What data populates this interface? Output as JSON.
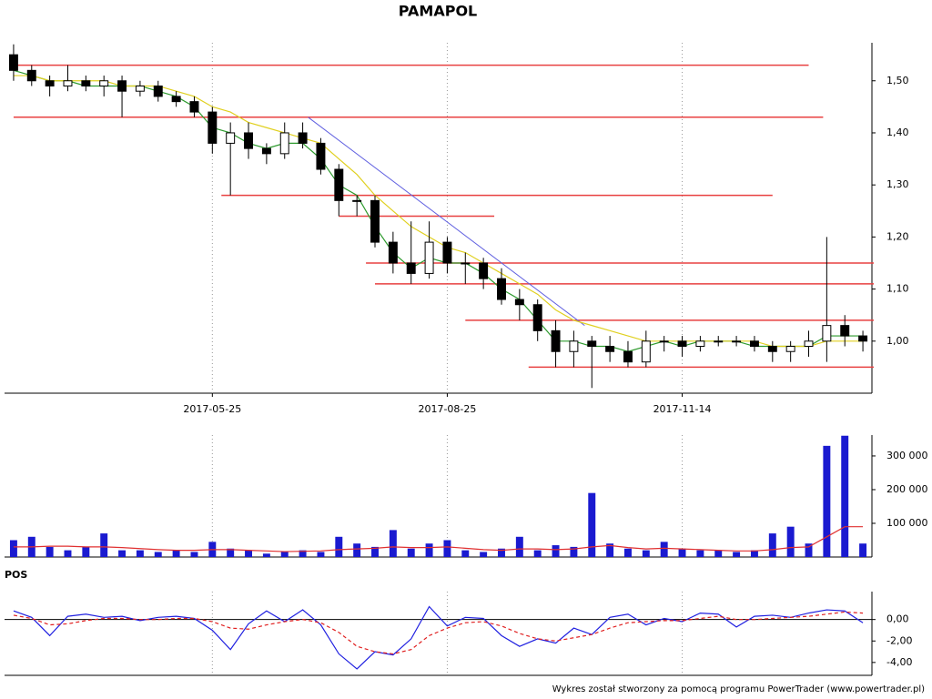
{
  "chart_data": [
    {
      "type": "candlestick",
      "title": "PAMAPOL",
      "categories": [
        null,
        null,
        null,
        null,
        null,
        null,
        null,
        null,
        null,
        null,
        null,
        "2017-05-25",
        null,
        null,
        null,
        null,
        null,
        null,
        null,
        null,
        null,
        null,
        null,
        null,
        "2017-08-25",
        null,
        null,
        null,
        null,
        null,
        null,
        null,
        null,
        null,
        null,
        null,
        null,
        "2017-11-14",
        null,
        null,
        null,
        null,
        null,
        null,
        null,
        null,
        null,
        null
      ],
      "open": [
        1.55,
        1.52,
        1.5,
        1.49,
        1.5,
        1.49,
        1.5,
        1.48,
        1.49,
        1.47,
        1.46,
        1.44,
        1.38,
        1.4,
        1.37,
        1.36,
        1.4,
        1.38,
        1.33,
        1.27,
        1.27,
        1.19,
        1.15,
        1.13,
        1.19,
        1.15,
        1.15,
        1.12,
        1.08,
        1.07,
        1.02,
        0.98,
        1.0,
        0.99,
        0.98,
        0.96,
        1.0,
        1.0,
        0.99,
        1.0,
        1.0,
        1.0,
        0.99,
        0.98,
        0.99,
        1.0,
        1.03,
        1.01
      ],
      "high": [
        1.57,
        1.53,
        1.51,
        1.53,
        1.51,
        1.51,
        1.51,
        1.5,
        1.5,
        1.48,
        1.47,
        1.45,
        1.42,
        1.42,
        1.38,
        1.42,
        1.42,
        1.39,
        1.34,
        1.28,
        1.28,
        1.21,
        1.23,
        1.23,
        1.2,
        1.17,
        1.16,
        1.14,
        1.1,
        1.08,
        1.04,
        1.02,
        1.01,
        1.01,
        1.0,
        1.02,
        1.01,
        1.01,
        1.01,
        1.01,
        1.01,
        1.01,
        1.0,
        1.0,
        1.02,
        1.2,
        1.05,
        1.02
      ],
      "low": [
        1.5,
        1.49,
        1.47,
        1.48,
        1.48,
        1.47,
        1.43,
        1.47,
        1.46,
        1.45,
        1.43,
        1.36,
        1.28,
        1.35,
        1.34,
        1.35,
        1.37,
        1.32,
        1.24,
        1.24,
        1.18,
        1.13,
        1.11,
        1.12,
        1.13,
        1.11,
        1.1,
        1.07,
        1.04,
        1.0,
        0.95,
        0.95,
        0.91,
        0.96,
        0.95,
        0.95,
        0.98,
        0.97,
        0.98,
        0.99,
        0.99,
        0.98,
        0.96,
        0.96,
        0.97,
        0.96,
        0.99,
        0.98
      ],
      "close": [
        1.52,
        1.5,
        1.49,
        1.5,
        1.49,
        1.5,
        1.48,
        1.49,
        1.47,
        1.46,
        1.44,
        1.38,
        1.4,
        1.37,
        1.36,
        1.4,
        1.38,
        1.33,
        1.27,
        1.27,
        1.19,
        1.15,
        1.13,
        1.19,
        1.15,
        1.15,
        1.12,
        1.08,
        1.07,
        1.02,
        0.98,
        1.0,
        0.99,
        0.98,
        0.96,
        1.0,
        1.0,
        0.99,
        1.0,
        1.0,
        1.0,
        0.99,
        0.98,
        0.99,
        1.0,
        1.03,
        1.01,
        1.0
      ],
      "up_color": "#ffffff",
      "down_color": "#000000",
      "series": [
        {
          "color": "#2e9a2e",
          "values": [
            1.52,
            1.51,
            1.5,
            1.5,
            1.49,
            1.49,
            1.49,
            1.49,
            1.48,
            1.47,
            1.45,
            1.41,
            1.4,
            1.38,
            1.37,
            1.38,
            1.38,
            1.35,
            1.3,
            1.28,
            1.22,
            1.17,
            1.14,
            1.16,
            1.15,
            1.15,
            1.13,
            1.1,
            1.08,
            1.04,
            1.0,
            1.0,
            0.99,
            0.99,
            0.98,
            0.99,
            1.0,
            0.99,
            1.0,
            1.0,
            1.0,
            0.99,
            0.99,
            0.99,
            0.99,
            1.01,
            1.01,
            1.01
          ]
        },
        {
          "color": "#e0d020",
          "values": [
            1.51,
            1.51,
            1.5,
            1.5,
            1.5,
            1.5,
            1.49,
            1.49,
            1.49,
            1.48,
            1.47,
            1.45,
            1.44,
            1.42,
            1.41,
            1.4,
            1.39,
            1.38,
            1.35,
            1.32,
            1.28,
            1.25,
            1.22,
            1.2,
            1.18,
            1.17,
            1.15,
            1.13,
            1.11,
            1.09,
            1.06,
            1.04,
            1.03,
            1.02,
            1.01,
            1.0,
            1.0,
            1.0,
            1.0,
            1.0,
            1.0,
            1.0,
            0.99,
            0.99,
            0.99,
            1.0,
            1.0,
            1.0
          ]
        }
      ],
      "levels": {
        "color": "#e84040",
        "lines": [
          {
            "value": 1.53,
            "from": 0,
            "to": 44
          },
          {
            "value": 1.43,
            "from": 0,
            "to": 44.8
          },
          {
            "value": 1.28,
            "from": 11.5,
            "to": 42
          },
          {
            "value": 1.24,
            "from": 18,
            "to": 26.6
          },
          {
            "value": 1.15,
            "from": 19.5,
            "to": 47.6
          },
          {
            "value": 1.11,
            "from": 20,
            "to": 47.6
          },
          {
            "value": 1.04,
            "from": 25,
            "to": 47.6
          },
          {
            "value": 0.95,
            "from": 28.5,
            "to": 47.6
          }
        ]
      },
      "trendline": {
        "color": "#6060e0",
        "points": [
          [
            16.3,
            1.43
          ],
          [
            31.6,
            1.03
          ]
        ]
      },
      "ylim": [
        0.9,
        1.573
      ],
      "yticks": [
        {
          "value": 1.0,
          "label": "1,00"
        },
        {
          "value": 1.1,
          "label": "1,10"
        },
        {
          "value": 1.2,
          "label": "1,20"
        },
        {
          "value": 1.3,
          "label": "1,30"
        },
        {
          "value": 1.4,
          "label": "1,40"
        },
        {
          "value": 1.5,
          "label": "1,50"
        }
      ]
    },
    {
      "type": "bar",
      "color": "#1a1ad0",
      "values": [
        50000,
        60000,
        30000,
        20000,
        30000,
        70000,
        20000,
        20000,
        15000,
        20000,
        15000,
        45000,
        25000,
        20000,
        10000,
        15000,
        20000,
        15000,
        60000,
        40000,
        30000,
        80000,
        25000,
        40000,
        50000,
        20000,
        15000,
        25000,
        60000,
        20000,
        35000,
        30000,
        190000,
        40000,
        25000,
        20000,
        45000,
        25000,
        20000,
        20000,
        15000,
        20000,
        70000,
        90000,
        40000,
        330000,
        360000,
        40000
      ],
      "series": [
        {
          "color": "#e03030",
          "values": [
            30000,
            30000,
            32000,
            32000,
            30000,
            30000,
            28000,
            25000,
            22000,
            20000,
            20000,
            22000,
            22000,
            20000,
            18000,
            16000,
            17000,
            18000,
            22000,
            24000,
            26000,
            30000,
            28000,
            28000,
            30000,
            26000,
            22000,
            20000,
            24000,
            24000,
            22000,
            24000,
            30000,
            34000,
            28000,
            24000,
            26000,
            24000,
            22000,
            20000,
            18000,
            18000,
            22000,
            28000,
            30000,
            60000,
            90000,
            90000
          ]
        }
      ],
      "ylim": [
        0,
        362000
      ],
      "yticks": [
        {
          "value": 100000,
          "label": "100 000"
        },
        {
          "value": 200000,
          "label": "200 000"
        },
        {
          "value": 300000,
          "label": "300 000"
        }
      ]
    },
    {
      "type": "line",
      "title": "POS",
      "series": [
        {
          "color": "#2020e0",
          "values": [
            0.8,
            0.2,
            -1.5,
            0.3,
            0.5,
            0.2,
            0.3,
            -0.1,
            0.2,
            0.3,
            0.1,
            -1.0,
            -2.8,
            -0.4,
            0.8,
            -0.2,
            0.9,
            -0.5,
            -3.2,
            -4.6,
            -3.0,
            -3.3,
            -1.8,
            1.2,
            -0.6,
            0.2,
            0.1,
            -1.5,
            -2.5,
            -1.8,
            -2.2,
            -0.8,
            -1.4,
            0.2,
            0.5,
            -0.5,
            0.1,
            -0.2,
            0.6,
            0.5,
            -0.7,
            0.3,
            0.4,
            0.2,
            0.6,
            0.9,
            0.8,
            -0.3
          ]
        },
        {
          "color": "#e02020",
          "dashed": true,
          "values": [
            0.4,
            0.1,
            -0.5,
            -0.4,
            -0.1,
            0.1,
            0.1,
            0.0,
            0.0,
            0.1,
            0.1,
            -0.2,
            -0.8,
            -0.9,
            -0.5,
            -0.2,
            0.0,
            -0.3,
            -1.2,
            -2.5,
            -3.0,
            -3.2,
            -2.8,
            -1.5,
            -0.8,
            -0.3,
            -0.2,
            -0.6,
            -1.3,
            -1.8,
            -2.0,
            -1.7,
            -1.4,
            -0.8,
            -0.3,
            -0.2,
            -0.1,
            -0.1,
            0.1,
            0.3,
            0.0,
            0.0,
            0.1,
            0.2,
            0.3,
            0.5,
            0.7,
            0.6
          ]
        }
      ],
      "ylim": [
        -5.2,
        2.6
      ],
      "yticks": [
        {
          "value": -4,
          "label": "-4,00"
        },
        {
          "value": -2,
          "label": "-2,00"
        },
        {
          "value": 0,
          "label": "0,00"
        }
      ]
    }
  ],
  "footer": "Wykres został stworzony za pomocą programu PowerTrader (www.powertrader.pl)"
}
